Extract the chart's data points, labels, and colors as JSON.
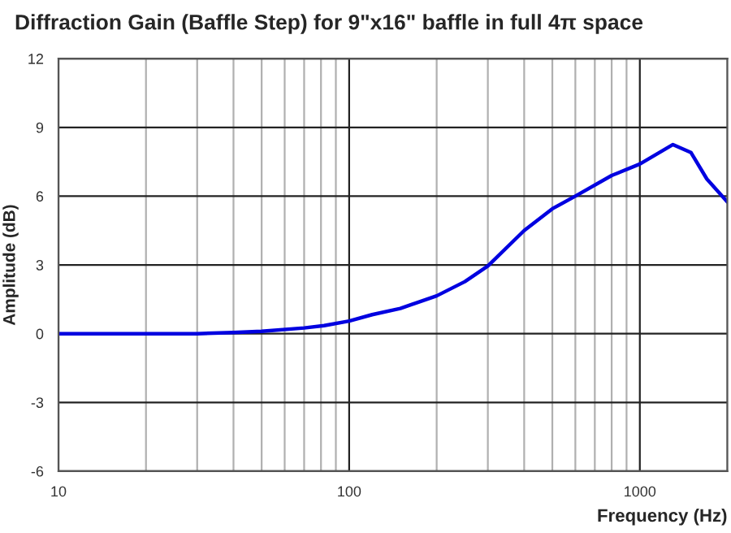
{
  "chart_data": {
    "type": "line",
    "title": "Diffraction Gain (Baffle Step) for 9\"x16\" baffle in full 4π space",
    "xlabel": "Frequency (Hz)",
    "ylabel": "Amplitude (dB)",
    "x": [
      10,
      20,
      30,
      40,
      50,
      70,
      82,
      100,
      120,
      150,
      200,
      250,
      300,
      400,
      500,
      600,
      800,
      1000,
      1300,
      1500,
      1700,
      2000
    ],
    "series": [
      {
        "color": "#0000e0",
        "values": [
          0,
          0,
          0,
          0.05,
          0.1,
          0.25,
          0.35,
          0.55,
          0.83,
          1.1,
          1.65,
          2.27,
          2.95,
          4.5,
          5.45,
          6.0,
          6.9,
          7.4,
          8.25,
          7.9,
          6.75,
          5.75
        ]
      }
    ],
    "log": "x",
    "xlim": [
      10,
      2000
    ],
    "xticks": [
      10,
      100,
      1000
    ],
    "ylim": [
      -6,
      12
    ],
    "yticks": [
      -6,
      -3,
      0,
      3,
      6,
      9,
      12
    ],
    "grid": true,
    "line_style": "solid",
    "marker": "none"
  }
}
